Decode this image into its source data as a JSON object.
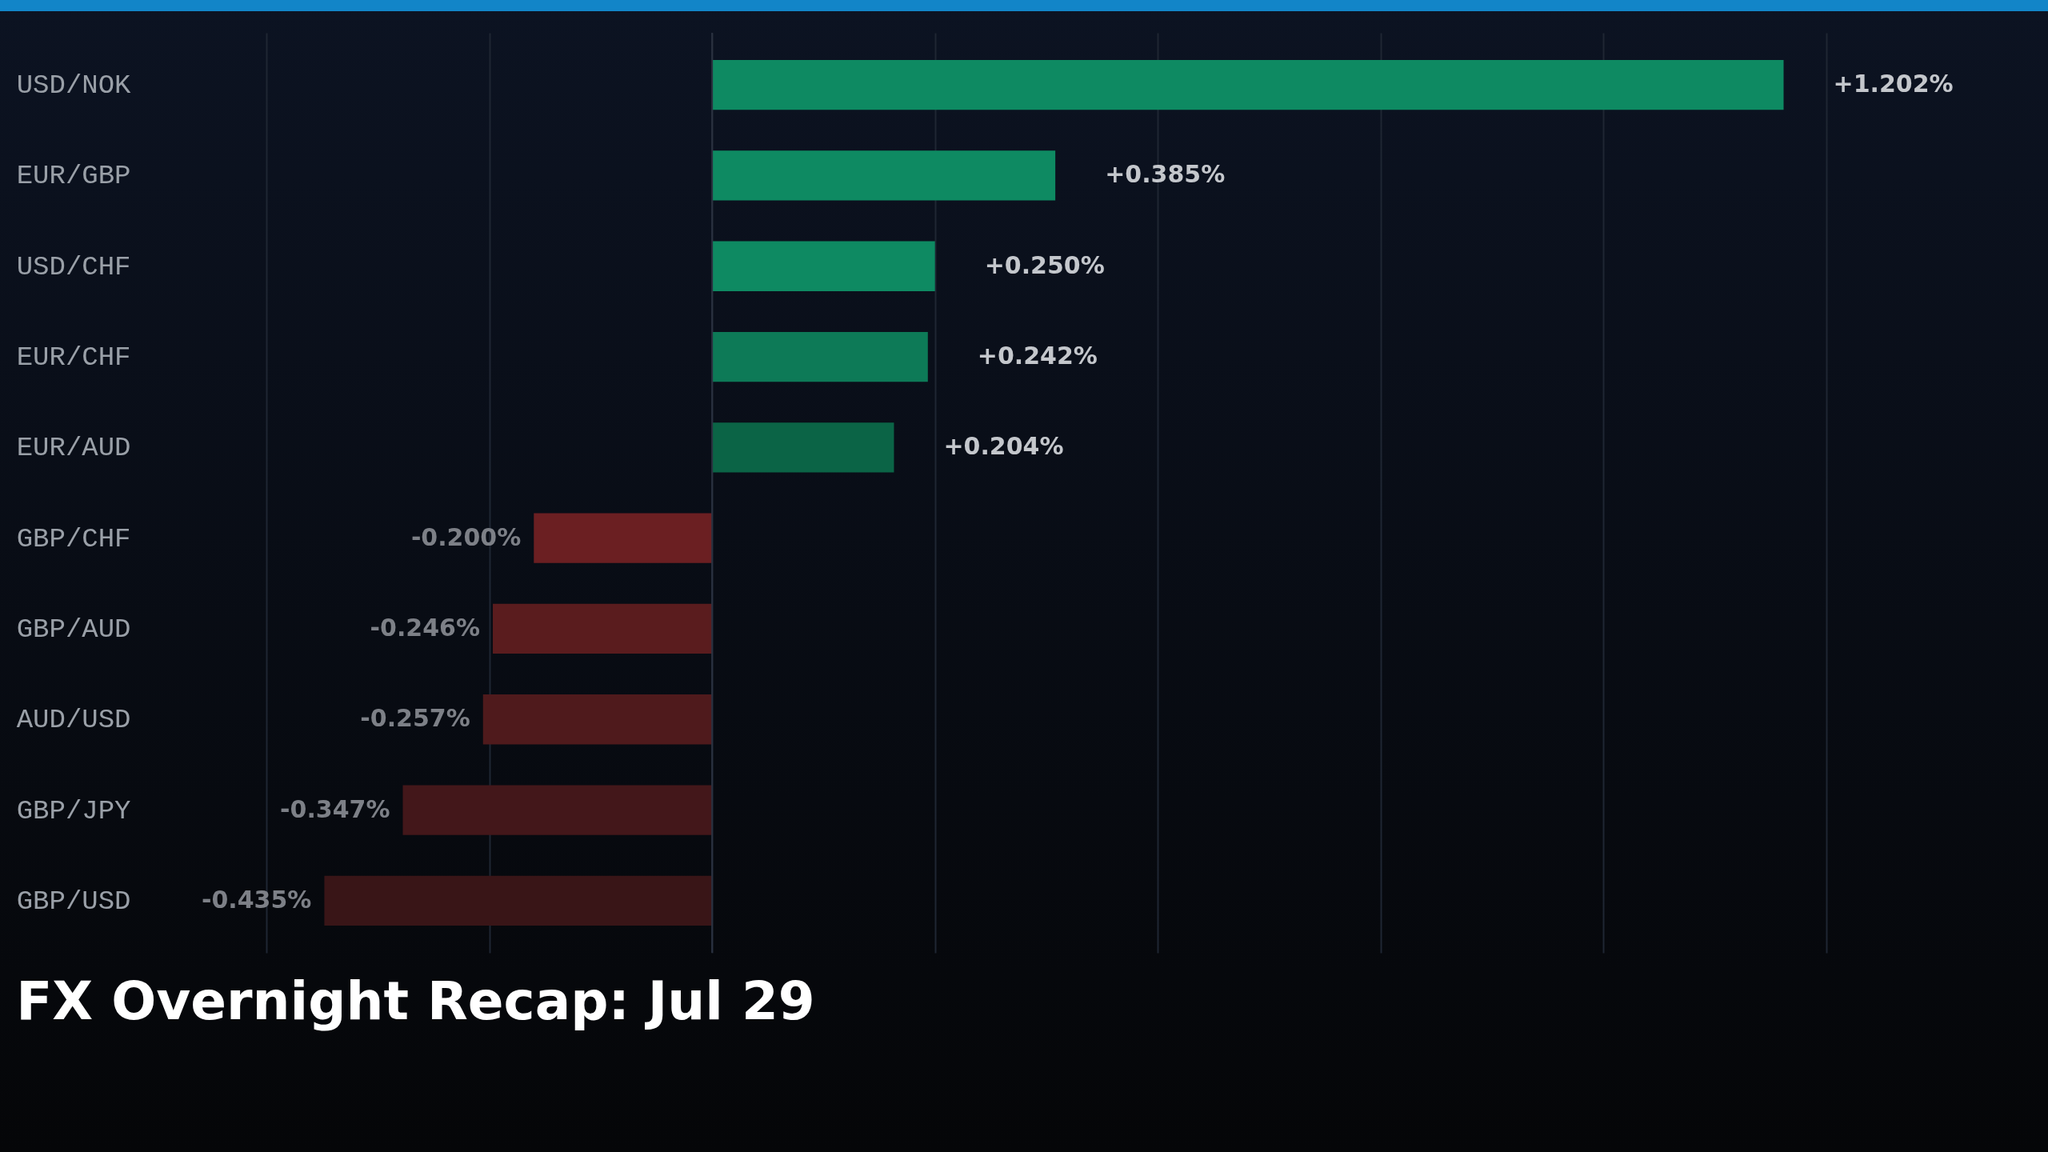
{
  "chart_data": {
    "type": "bar",
    "orientation": "horizontal",
    "title": "FX Overnight Recap: Jul 29",
    "categories": [
      "USD/NOK",
      "EUR/GBP",
      "USD/CHF",
      "EUR/CHF",
      "EUR/AUD",
      "GBP/CHF",
      "GBP/AUD",
      "AUD/USD",
      "GBP/JPY",
      "GBP/USD"
    ],
    "values": [
      1.202,
      0.385,
      0.25,
      0.242,
      0.204,
      -0.2,
      -0.246,
      -0.257,
      -0.347,
      -0.435
    ],
    "value_labels": [
      "+1.202%",
      "+0.385%",
      "+0.250%",
      "+0.242%",
      "+0.204%",
      "-0.200%",
      "-0.246%",
      "-0.257%",
      "-0.347%",
      "-0.435%"
    ],
    "colors": [
      "#0e8a62",
      "#0e8a62",
      "#0e8a62",
      "#0d7a57",
      "#0b6446",
      "#6b1f22",
      "#5a1c1e",
      "#4f1a1c",
      "#43171a",
      "#391517"
    ],
    "xticks": [
      {
        "value": -0.5,
        "label": null
      },
      {
        "value": -0.25,
        "label": null
      },
      {
        "value": 0,
        "label": null
      },
      {
        "value": 0.25,
        "label": null
      },
      {
        "value": 0.5,
        "label": null
      },
      {
        "value": 0.75,
        "label": null
      },
      {
        "value": 1,
        "label": null
      },
      {
        "value": 1.25,
        "label": null
      }
    ],
    "grid": "x",
    "tick_labels": "y"
  }
}
